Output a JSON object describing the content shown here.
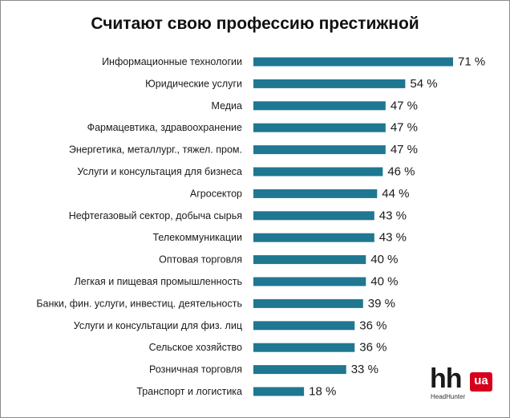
{
  "chart_data": {
    "type": "bar",
    "orientation": "horizontal",
    "title": "Считают свою профессию престижной",
    "categories": [
      "Информационные технологии",
      "Юридические услуги",
      "Медиа",
      "Фармацевтика, здравоохранение",
      "Энергетика, металлург., тяжел. пром.",
      "Услуги и консультация для бизнеса",
      "Агросектор",
      "Нефтегазовый сектор, добыча сырья",
      "Телекоммуникации",
      "Оптовая торговля",
      "Легкая и пищевая промышленность",
      "Банки, фин. услуги, инвестиц. деятельность",
      "Услуги и консультации для физ. лиц",
      "Сельское хозяйство",
      "Розничная торговля",
      "Транспорт и логистика"
    ],
    "values": [
      71,
      54,
      47,
      47,
      47,
      46,
      44,
      43,
      43,
      40,
      40,
      39,
      36,
      36,
      33,
      18
    ],
    "value_labels": [
      "71 %",
      "54 %",
      "47 %",
      "47 %",
      "47 %",
      "46 %",
      "44 %",
      "43 %",
      "43 %",
      "40 %",
      "40 %",
      "39 %",
      "36 %",
      "36 %",
      "33 %",
      "18 %"
    ],
    "unit": "%",
    "xlim": [
      0,
      71
    ],
    "grid": false,
    "legend": "none",
    "bar_color": "#1f7791"
  },
  "logo": {
    "mark": "hh",
    "badge": "ua",
    "sub": "HeadHunter"
  }
}
